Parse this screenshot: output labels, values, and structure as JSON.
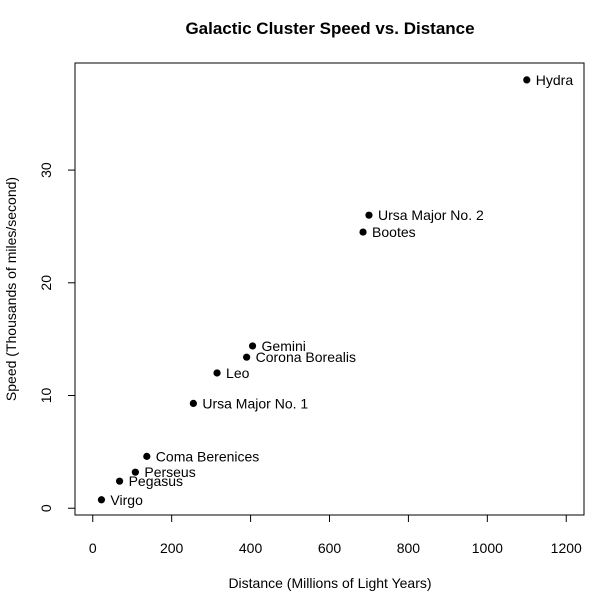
{
  "chart_data": {
    "type": "scatter",
    "title": "Galactic Cluster Speed vs. Distance",
    "xlabel": "Distance (Millions of Light Years)",
    "ylabel": "Speed (Thousands of miles/second)",
    "xlim": [
      -45,
      1245
    ],
    "ylim": [
      -0.6,
      39.5
    ],
    "xticks": [
      0,
      200,
      400,
      600,
      800,
      1000,
      1200
    ],
    "yticks": [
      0,
      10,
      20,
      30
    ],
    "grid": false,
    "legend": "none",
    "marker_color": "#000000",
    "points": [
      {
        "label": "Virgo",
        "x": 22,
        "y": 0.75
      },
      {
        "label": "Pegasus",
        "x": 68,
        "y": 2.4
      },
      {
        "label": "Perseus",
        "x": 108,
        "y": 3.2
      },
      {
        "label": "Coma Berenices",
        "x": 137,
        "y": 4.6
      },
      {
        "label": "Ursa Major No. 1",
        "x": 255,
        "y": 9.3
      },
      {
        "label": "Leo",
        "x": 315,
        "y": 12.0
      },
      {
        "label": "Corona Borealis",
        "x": 390,
        "y": 13.4
      },
      {
        "label": "Gemini",
        "x": 405,
        "y": 14.4
      },
      {
        "label": "Bootes",
        "x": 685,
        "y": 24.5
      },
      {
        "label": "Ursa Major No. 2",
        "x": 700,
        "y": 26.0
      },
      {
        "label": "Hydra",
        "x": 1100,
        "y": 38.0
      }
    ]
  }
}
